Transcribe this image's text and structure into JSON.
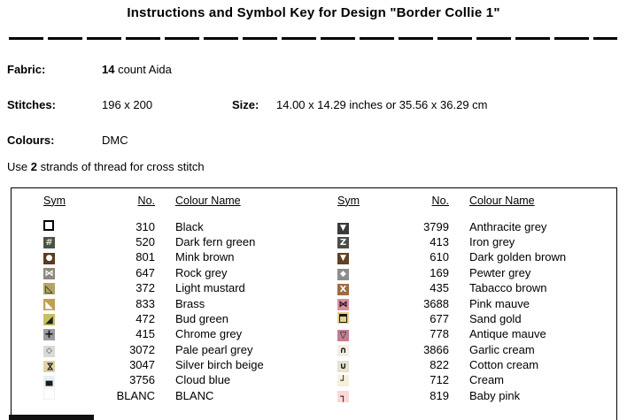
{
  "title": "Instructions and Symbol Key for Design \"Border Collie 1\"",
  "info": {
    "fabric_label": "Fabric:",
    "fabric_bold": "14",
    "fabric_rest": " count Aida",
    "stitches_label": "Stitches:",
    "stitches_value": "196 x 200",
    "size_label": "Size:",
    "size_value": "14.00 x 14.29 inches or 35.56 x 36.29 cm",
    "colours_label": "Colours:",
    "colours_value": "DMC",
    "strands_prefix": "Use ",
    "strands_bold": "2",
    "strands_suffix": " strands of thread for cross stitch"
  },
  "key": {
    "headers": [
      "Sym",
      "No.",
      "Colour Name"
    ],
    "left": [
      {
        "no": "310",
        "name": "Black",
        "sym": {
          "type": "outline",
          "bg": "#000000"
        }
      },
      {
        "no": "520",
        "name": "Dark fern green",
        "sym": {
          "type": "char",
          "bg": "#4d5344",
          "glyph": "#",
          "fg": "#dedfcd",
          "fs": 10,
          "bold": true
        }
      },
      {
        "no": "801",
        "name": "Mink brown",
        "sym": {
          "type": "char",
          "bg": "#5c3a21",
          "glyph": "●",
          "fg": "#ffffff",
          "fs": 9
        }
      },
      {
        "no": "647",
        "name": "Rock grey",
        "sym": {
          "type": "char",
          "bg": "#8e897c",
          "glyph": "⋈",
          "fg": "#ffffff",
          "fs": 10,
          "bold": true
        }
      },
      {
        "no": "372",
        "name": "Light mustard",
        "sym": {
          "type": "char",
          "bg": "#b1a566",
          "glyph": "◺",
          "fg": "#1c1c1c",
          "fs": 11,
          "bold": true
        }
      },
      {
        "no": "833",
        "name": "Brass",
        "sym": {
          "type": "char",
          "bg": "#c19f50",
          "glyph": "◣",
          "fg": "#ffffff",
          "fs": 11
        }
      },
      {
        "no": "472",
        "name": "Bud green",
        "sym": {
          "type": "char",
          "bg": "#c5c162",
          "glyph": "◢",
          "fg": "#222222",
          "fs": 11
        }
      },
      {
        "no": "415",
        "name": "Chrome grey",
        "sym": {
          "type": "char",
          "bg": "#9b9b9f",
          "glyph": "+",
          "fg": "#101010",
          "fs": 13,
          "bold": true
        }
      },
      {
        "no": "3072",
        "name": "Pale pearl grey",
        "sym": {
          "type": "char",
          "bg": "#dadad6",
          "glyph": "◇",
          "fg": "#333333",
          "fs": 9,
          "bold": true
        }
      },
      {
        "no": "3047",
        "name": "Silver birch beige",
        "sym": {
          "type": "char",
          "bg": "#e2d1a2",
          "glyph": "⋈",
          "fg": "#1c1c1c",
          "fs": 10,
          "bold": true,
          "rot": 90
        }
      },
      {
        "no": "3756",
        "name": "Cloud blue",
        "sym": {
          "type": "char",
          "bg": "#e8f0f6",
          "glyph": "▄",
          "fg": "#1a1a1a",
          "fs": 10
        }
      },
      {
        "no": "BLANC",
        "name": "BLANC",
        "sym": {
          "type": "blank",
          "bg": "#fefefe"
        }
      }
    ],
    "right": [
      {
        "no": "3799",
        "name": "Anthracite grey",
        "sym": {
          "type": "char",
          "bg": "#3b3b3b",
          "glyph": "▼",
          "fg": "#ffffff",
          "fs": 9
        }
      },
      {
        "no": "413",
        "name": "Iron grey",
        "sym": {
          "type": "char",
          "bg": "#4b4b49",
          "glyph": "Z",
          "fg": "#ffffff",
          "fs": 10,
          "bold": true
        }
      },
      {
        "no": "610",
        "name": "Dark golden brown",
        "sym": {
          "type": "char",
          "bg": "#604124",
          "glyph": "▼",
          "fg": "#ffffff",
          "fs": 9
        }
      },
      {
        "no": "169",
        "name": "Pewter grey",
        "sym": {
          "type": "char",
          "bg": "#8d8d8b",
          "glyph": "◆",
          "fg": "#ffffff",
          "fs": 9
        }
      },
      {
        "no": "435",
        "name": "Tabacco brown",
        "sym": {
          "type": "char",
          "bg": "#9e6a42",
          "glyph": "X",
          "fg": "#ffffff",
          "fs": 10,
          "bold": true
        }
      },
      {
        "no": "3688",
        "name": "Pink mauve",
        "sym": {
          "type": "char",
          "bg": "#db8c9f",
          "glyph": "⋈",
          "fg": "#111111",
          "fs": 10,
          "bold": true
        }
      },
      {
        "no": "677",
        "name": "Sand gold",
        "sym": {
          "type": "boxtop",
          "bg": "#e6d193"
        }
      },
      {
        "no": "778",
        "name": "Antique mauve",
        "sym": {
          "type": "char",
          "bg": "#c17f90",
          "glyph": "▽",
          "fg": "#1c1c1c",
          "fs": 10,
          "bold": true
        }
      },
      {
        "no": "3866",
        "name": "Garlic cream",
        "sym": {
          "type": "char",
          "bg": "#f4eee2",
          "glyph": "∩",
          "fg": "#111111",
          "fs": 10,
          "bold": true
        }
      },
      {
        "no": "822",
        "name": "Cotton cream",
        "sym": {
          "type": "char",
          "bg": "#e6e1ce",
          "glyph": "∪",
          "fg": "#111111",
          "fs": 10,
          "bold": true
        }
      },
      {
        "no": "712",
        "name": "Cream",
        "sym": {
          "type": "char",
          "bg": "#f5f0dd",
          "glyph": "┘",
          "fg": "#111111",
          "fs": 11,
          "bold": true
        }
      },
      {
        "no": "819",
        "name": "Baby pink",
        "sym": {
          "type": "char",
          "bg": "#fad8d4",
          "glyph": "┐",
          "fg": "#111111",
          "fs": 11,
          "bold": true
        }
      }
    ]
  }
}
